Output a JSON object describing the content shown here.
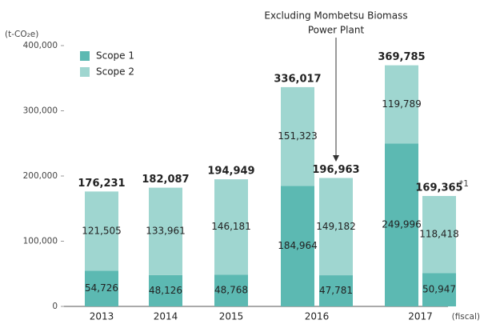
{
  "chart_data": {
    "type": "stacked_bar",
    "unit_label": "(t-CO₂e)",
    "x_label": "(fiscal)",
    "annotation": [
      "Excluding Mombetsu Biomass",
      "Power Plant"
    ],
    "categories": [
      "2013",
      "2014",
      "2015",
      "2016",
      null,
      "2017",
      null
    ],
    "series": [
      {
        "name": "Scope 1",
        "color": "#5cb9b2",
        "values": [
          54726,
          48126,
          48768,
          184964,
          47781,
          249996,
          50947
        ],
        "value_labels": [
          "54,726",
          "48,126",
          "48,768",
          "184,964",
          "47,781",
          "249,996",
          "50,947"
        ]
      },
      {
        "name": "Scope 2",
        "color": "#9fd6d0",
        "values": [
          121505,
          133961,
          146181,
          151323,
          149182,
          119789,
          118418
        ],
        "value_labels": [
          "121,505",
          "133,961",
          "146,181",
          "151,323",
          "149,182",
          "119,789",
          "118,418"
        ]
      }
    ],
    "totals": [
      176231,
      182087,
      194949,
      336017,
      196963,
      369785,
      169365
    ],
    "total_labels": [
      "176,231",
      "182,087",
      "194,949",
      "336,017",
      "196,963",
      "369,785",
      "169,365"
    ],
    "footnote_mark": "*1",
    "ylim": [
      0,
      400000
    ],
    "yticks": [
      0,
      {
        "value": 100000,
        "label": "100,000"
      },
      {
        "value": 200000,
        "label": "200,000"
      },
      {
        "value": 300000,
        "label": "300,000"
      },
      {
        "value": 400000,
        "label": "400,000"
      }
    ],
    "grid": false,
    "legend": "upper left"
  }
}
